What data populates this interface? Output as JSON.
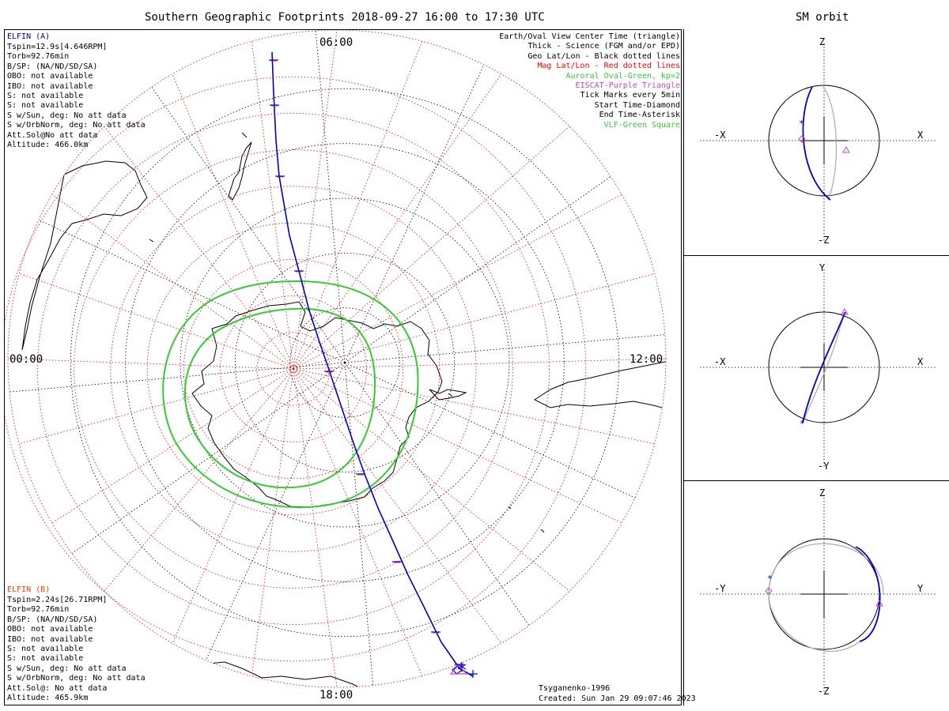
{
  "title": "Southern Geographic Footprints 2018-09-27 16:00 to 17:30 UTC",
  "sm_title": "SM orbit",
  "colors": {
    "orbit": "#0000cc",
    "mag_grid": "#ff0000",
    "oval": "#33cc33",
    "eiscat": "#cc44cc",
    "geo_grid": "#000000",
    "orbit_ghost": "#aaaaaa"
  },
  "elfin_a": {
    "name": "ELFIN (A)",
    "lines": [
      "Tspin=12.9s[4.646RPM]",
      "Torb=92.76min",
      "B/SP: (NA/ND/SD/SA)",
      "OBO: not available",
      "IBO: not available",
      "S: not available",
      "S: not available",
      "S w/Sun, deg: No att data",
      "S w/OrbNorm, deg: No att data",
      "Att.Sol@No att data",
      "Altitude: 466.0km"
    ]
  },
  "elfin_b": {
    "name": "ELFIN (B)",
    "lines": [
      "Tspin=2.24s[26.71RPM]",
      "Torb=92.76min",
      "B/SP: (NA/ND/SD/SA)",
      "OBO: not available",
      "IBO: not available",
      "S: not available",
      "S: not available",
      "S w/Sun, deg: No att data",
      "S w/OrbNorm, deg: No att data",
      "Att.Sol@: No att data",
      "Altitude: 465.9km"
    ]
  },
  "legend": [
    {
      "text": "Earth/Oval View Center Time (triangle)",
      "color": "#000000"
    },
    {
      "text": "Thick - Science (FGM and/or EPD)",
      "color": "#000000"
    },
    {
      "text": "Geo Lat/Lon - Black dotted lines",
      "color": "#000000"
    },
    {
      "text": "Mag Lat/Lon - Red dotted lines",
      "color": "#ff0000"
    },
    {
      "text": "Auroral Oval-Green, kp=2",
      "color": "#33cc33"
    },
    {
      "text": "EISCAT-Purple Triangle",
      "color": "#cc44cc"
    },
    {
      "text": "Tick Marks every 5min",
      "color": "#000000"
    },
    {
      "text": "Start Time-Diamond",
      "color": "#000000"
    },
    {
      "text": "End Time-Asterisk",
      "color": "#000000"
    },
    {
      "text": "VLF-Green Square",
      "color": "#33cc33"
    }
  ],
  "mlt_labels": {
    "top": "06:00",
    "left": "00:00",
    "right": "12:00",
    "bottom": "18:00"
  },
  "model": "Tsyganenko-1996",
  "created": "Created: Sun Jan 29 09:07:46 2023",
  "panels": [
    {
      "name": "xz",
      "top": "Z",
      "bottom": "-Z",
      "left": "-X",
      "right": "X"
    },
    {
      "name": "xy",
      "top": "Y",
      "bottom": "-Y",
      "left": "-X",
      "right": "X"
    },
    {
      "name": "yz",
      "top": "Z",
      "bottom": "-Z",
      "left": "-Y",
      "right": "Y"
    }
  ],
  "chart_data": {
    "type": "polar-footprint-map",
    "hemisphere": "south",
    "time_range": [
      "2018-09-27 16:00",
      "2018-09-27 17:30"
    ],
    "magnetic_latitude_circles_deg": [
      -80,
      -70,
      -60,
      -50,
      -40,
      -30,
      -20,
      -10,
      0
    ],
    "mlt_spokes_hours": [
      0,
      1,
      2,
      3,
      4,
      5,
      6,
      7,
      8,
      9,
      10,
      11,
      12,
      13,
      14,
      15,
      16,
      17,
      18,
      19,
      20,
      21,
      22,
      23
    ],
    "tick_interval_min": 5,
    "kp": 2
  }
}
